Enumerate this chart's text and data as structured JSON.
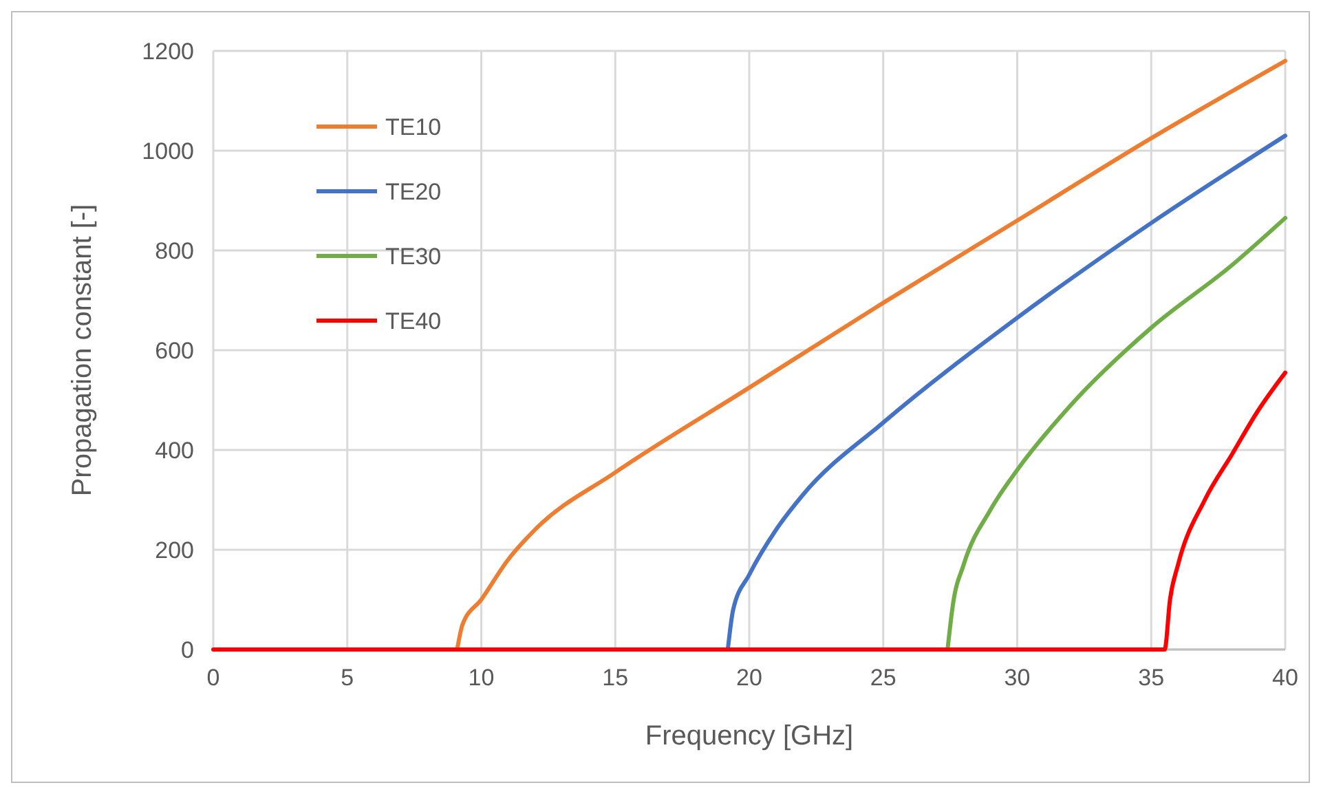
{
  "chart_data": {
    "type": "line",
    "xlabel": "Frequency [GHz]",
    "ylabel": "Propagation constant [-]",
    "xlim": [
      0,
      40
    ],
    "xticks": [
      0,
      5,
      10,
      15,
      20,
      25,
      30,
      35,
      40
    ],
    "ylim": [
      0,
      1200
    ],
    "yticks": [
      0,
      200,
      400,
      600,
      800,
      1000,
      1200
    ],
    "grid": true,
    "legend": "top left",
    "marker": "none",
    "line_style": "solid",
    "series": [
      {
        "name": "TE10",
        "color": "#ed7d31",
        "x": [
          9.1,
          9.3,
          10,
          11,
          12,
          15,
          20,
          25,
          30,
          35,
          40
        ],
        "values": [
          0,
          50,
          100,
          180,
          240,
          355,
          525,
          695,
          860,
          1025,
          1180
        ]
      },
      {
        "name": "TE20",
        "color": "#4472c4",
        "x": [
          19.2,
          19.4,
          20,
          21,
          22,
          25,
          30,
          35,
          40
        ],
        "values": [
          0,
          80,
          150,
          240,
          310,
          455,
          665,
          855,
          1030
        ]
      },
      {
        "name": "TE30",
        "color": "#70ad47",
        "x": [
          27.4,
          27.6,
          28,
          29,
          30,
          32,
          35,
          38,
          40
        ],
        "values": [
          0,
          90,
          170,
          280,
          360,
          490,
          645,
          770,
          865
        ]
      },
      {
        "name": "TE40",
        "color": "#ff0000",
        "x": [
          0,
          35.5,
          35.7,
          36,
          37,
          38,
          39,
          40
        ],
        "values": [
          0,
          0,
          100,
          170,
          300,
          390,
          480,
          555
        ]
      }
    ]
  }
}
